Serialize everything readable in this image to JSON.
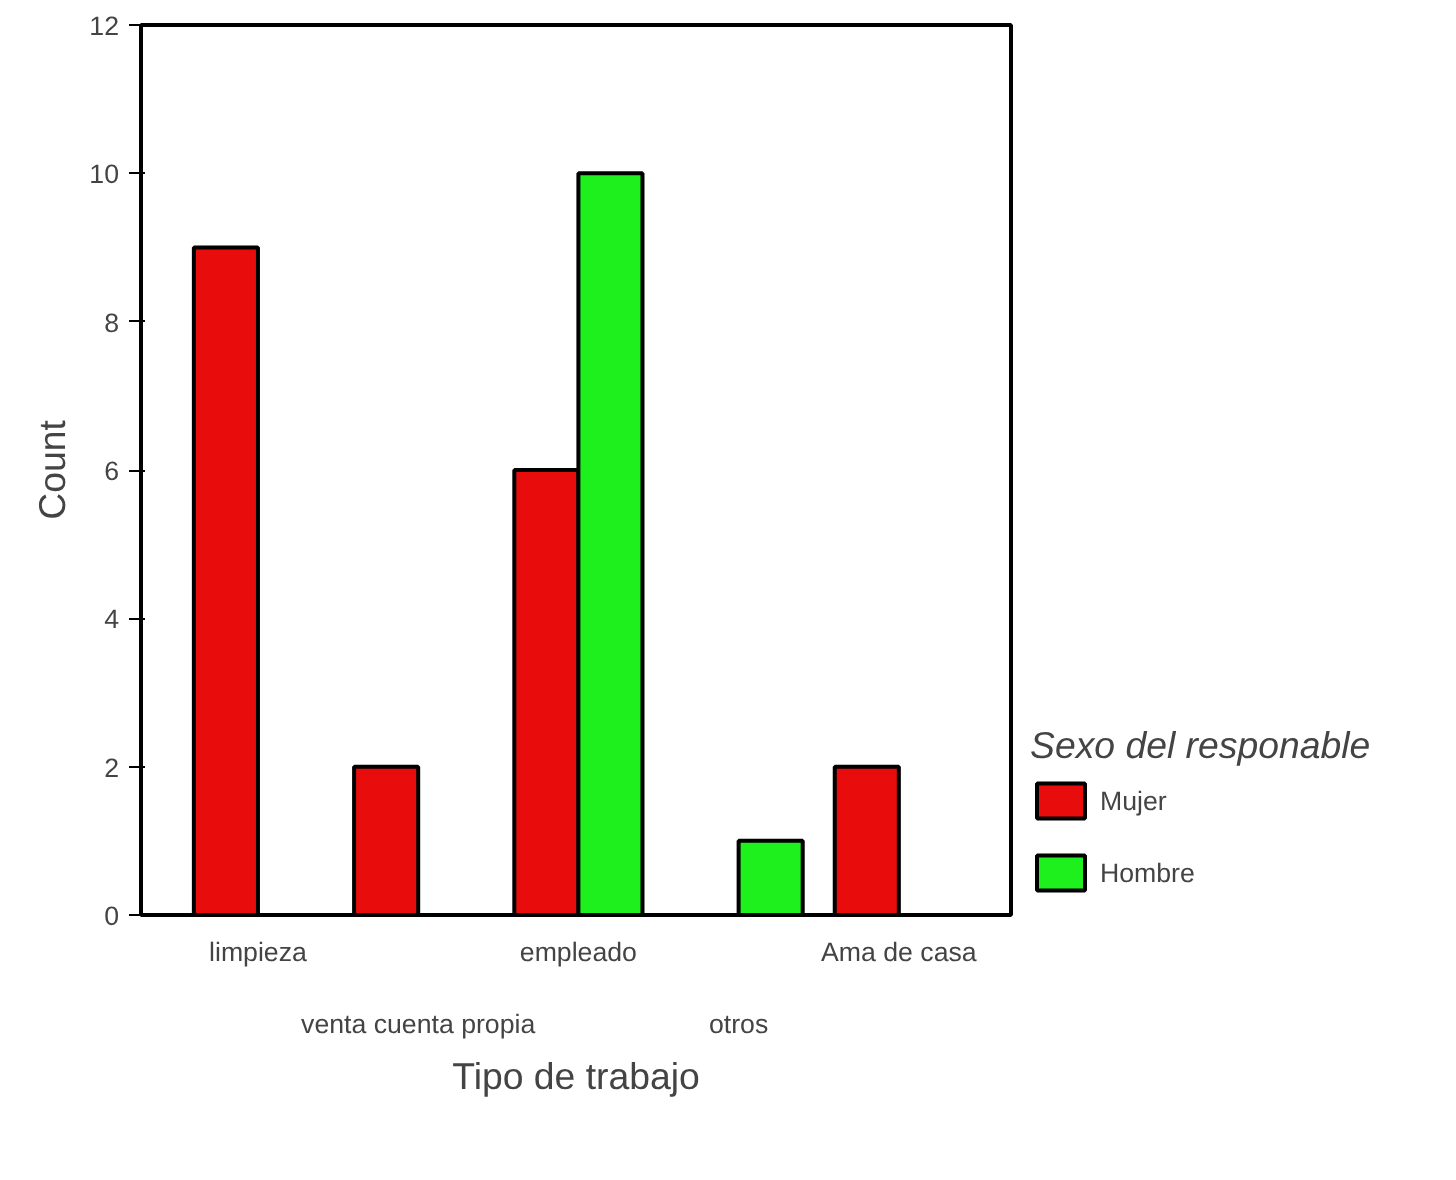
{
  "chart_data": {
    "type": "bar",
    "xlabel": "Tipo de trabajo",
    "ylabel": "Count",
    "legend_title": "Sexo del responable",
    "legend": "right",
    "grid": false,
    "categories": [
      "limpieza",
      "venta cuenta propia",
      "empleado",
      "otros",
      "Ama de casa"
    ],
    "series": [
      {
        "name": "Mujer",
        "color": "#e80c0c",
        "values": [
          9,
          2,
          6,
          null,
          2
        ]
      },
      {
        "name": "Hombre",
        "color": "#1ef01e",
        "values": [
          null,
          null,
          10,
          1,
          null
        ]
      }
    ],
    "ylim": [
      0,
      12
    ],
    "yticks": [
      0,
      2,
      4,
      6,
      8,
      10,
      12
    ]
  }
}
